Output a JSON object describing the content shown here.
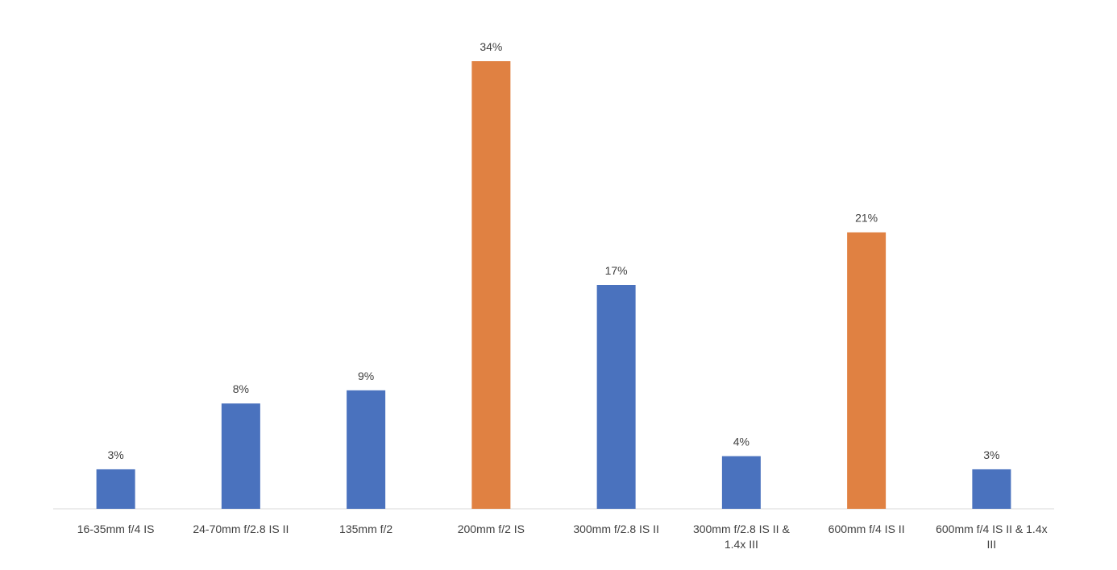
{
  "chart_data": {
    "type": "bar",
    "categories": [
      "16-35mm f/4 IS",
      "24-70mm f/2.8 IS II",
      "135mm f/2",
      "200mm f/2 IS",
      "300mm f/2.8 IS II",
      "300mm f/2.8 IS II & 1.4x III",
      "600mm f/4 IS II",
      "600mm f/4 IS II & 1.4x III"
    ],
    "values": [
      3,
      8,
      9,
      34,
      17,
      4,
      21,
      3
    ],
    "value_labels": [
      "3%",
      "8%",
      "9%",
      "34%",
      "17%",
      "4%",
      "21%",
      "3%"
    ],
    "colors": [
      "#4a72be",
      "#4a72be",
      "#4a72be",
      "#e08142",
      "#4a72be",
      "#4a72be",
      "#e08142",
      "#4a72be"
    ]
  }
}
